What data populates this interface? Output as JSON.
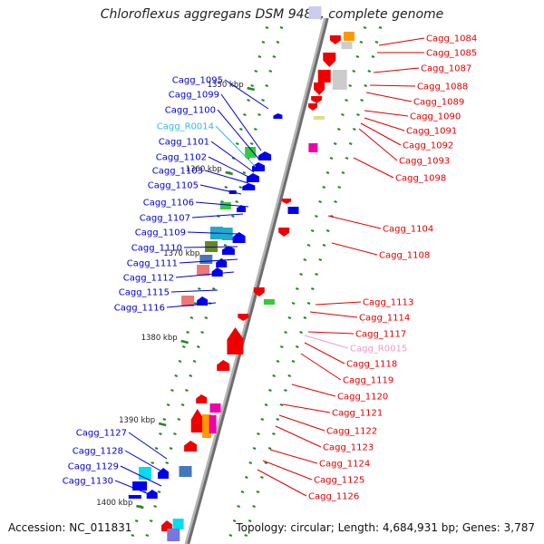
{
  "title": "Chloroflexus aggregans DSM 9485, complete genome",
  "footer": {
    "accession": "Accession: NC_011831",
    "summary": "Topology: circular; Length: 4,684,931 bp; Genes: 3,787"
  },
  "colors": {
    "backbone": "#8a8a8a",
    "left_label": "#0000cc",
    "right_label": "#dd0000",
    "rna_left": "#33bbdd",
    "rna_right": "#ee99cc",
    "tick": "#228822"
  },
  "kbp_marks": [
    "1350 kbp",
    "1360 kbp",
    "1370 kbp",
    "1380 kbp",
    "1390 kbp",
    "1400 kbp"
  ],
  "left_labels": [
    "Cagg_1095",
    "Cagg_1099",
    "Cagg_1100",
    "Cagg_R0014",
    "Cagg_1101",
    "Cagg_1102",
    "Cagg_1103",
    "Cagg_1105",
    "Cagg_1106",
    "Cagg_1107",
    "Cagg_1109",
    "Cagg_1110",
    "Cagg_1111",
    "Cagg_1112",
    "Cagg_1115",
    "Cagg_1116",
    "Cagg_1127",
    "Cagg_1128",
    "Cagg_1129",
    "Cagg_1130"
  ],
  "right_labels": [
    "Cagg_1084",
    "Cagg_1085",
    "Cagg_1087",
    "Cagg_1088",
    "Cagg_1089",
    "Cagg_1090",
    "Cagg_1091",
    "Cagg_1092",
    "Cagg_1093",
    "Cagg_1098",
    "Cagg_1104",
    "Cagg_1108",
    "Cagg_1113",
    "Cagg_1114",
    "Cagg_1117",
    "Cagg_R0015",
    "Cagg_1118",
    "Cagg_1119",
    "Cagg_1120",
    "Cagg_1121",
    "Cagg_1122",
    "Cagg_1123",
    "Cagg_1124",
    "Cagg_1125",
    "Cagg_1126"
  ]
}
